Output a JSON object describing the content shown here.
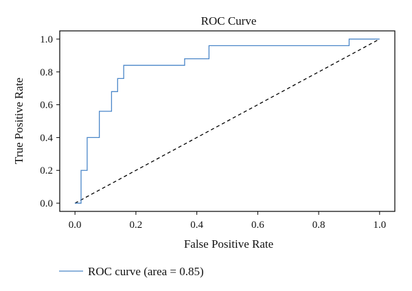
{
  "chart_data": {
    "type": "line",
    "title": "ROC Curve",
    "xlabel": "False Positive Rate",
    "ylabel": "True Positive Rate",
    "xlim": [
      -0.05,
      1.05
    ],
    "ylim": [
      -0.05,
      1.05
    ],
    "xticks": [
      0.0,
      0.2,
      0.4,
      0.6,
      0.8,
      1.0
    ],
    "yticks": [
      0.0,
      0.2,
      0.4,
      0.6,
      0.8,
      1.0
    ],
    "xtick_labels": [
      "0.0",
      "0.2",
      "0.4",
      "0.6",
      "0.8",
      "1.0"
    ],
    "ytick_labels": [
      "0.0",
      "0.2",
      "0.4",
      "0.6",
      "0.8",
      "1.0"
    ],
    "grid": false,
    "legend_position": "bottom-left, below axes",
    "series": [
      {
        "name": "ROC curve (area = 0.85)",
        "color": "#4a86c8",
        "style": "solid",
        "x": [
          0.0,
          0.02,
          0.02,
          0.04,
          0.04,
          0.08,
          0.08,
          0.12,
          0.12,
          0.14,
          0.14,
          0.16,
          0.16,
          0.36,
          0.36,
          0.44,
          0.44,
          0.9,
          0.9,
          1.0
        ],
        "y": [
          0.0,
          0.0,
          0.2,
          0.2,
          0.4,
          0.4,
          0.56,
          0.56,
          0.68,
          0.68,
          0.76,
          0.76,
          0.84,
          0.84,
          0.88,
          0.88,
          0.96,
          0.96,
          1.0,
          1.0
        ]
      }
    ],
    "reference_line": {
      "x": [
        0.0,
        1.0
      ],
      "y": [
        0.0,
        1.0
      ],
      "color": "#000000",
      "style": "dashed"
    }
  }
}
